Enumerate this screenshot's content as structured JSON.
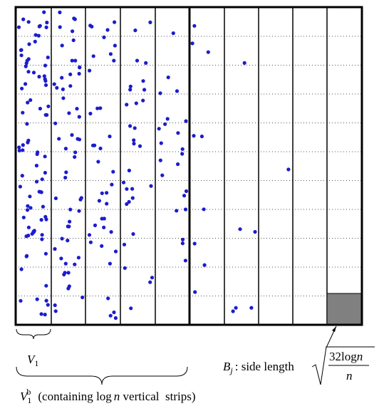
{
  "labels": {
    "v1": {
      "symbol": "V",
      "subscript": "1"
    },
    "v1b": {
      "symbol": "V",
      "subscript": "1",
      "superscript": "b",
      "note_prefix": "(containing ",
      "note_log": "log",
      "note_var": "n",
      "note_suffix": " vertical  strips)"
    },
    "bj": {
      "symbol": "B",
      "subscript": "j",
      "text": ": side length",
      "numerator_log": "32log",
      "numerator_var": "n",
      "denominator": "n"
    }
  }
}
